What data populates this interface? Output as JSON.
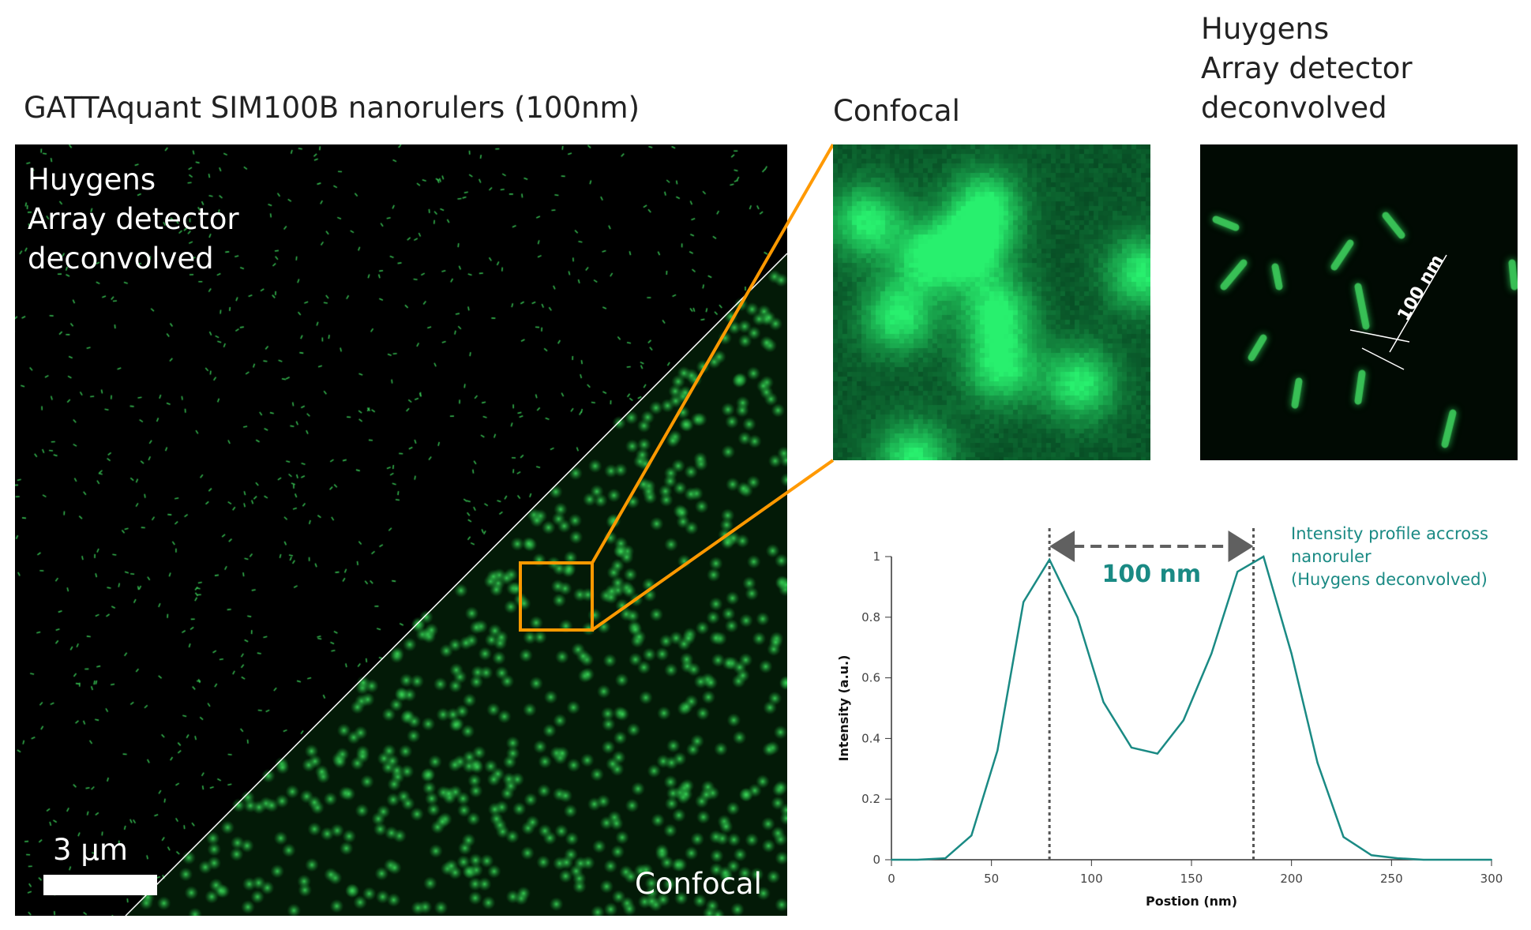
{
  "figure_title": "GATTAquant SIM100B nanorulers (100nm)",
  "main_image": {
    "overlay_top_left": [
      "Huygens",
      "Array detector",
      "deconvolved"
    ],
    "overlay_bottom_right": "Confocal",
    "scale_bar_label": "3 µm"
  },
  "insets": {
    "confocal_title": "Confocal",
    "huygens_title": [
      "Huygens",
      "Array detector",
      "deconvolved"
    ],
    "ruler_label": "100 nm"
  },
  "colors": {
    "accent": "#ff9900",
    "curve": "#1a8a84",
    "spot": "#2ecc55",
    "annotation": "#606060"
  },
  "chart_data": {
    "type": "line",
    "title": "",
    "xlabel": "Postion (nm)",
    "ylabel": "Intensity (a.u.)",
    "xlim": [
      0,
      300
    ],
    "ylim": [
      0,
      1
    ],
    "xticks": [
      "0",
      "50",
      "100",
      "150",
      "200",
      "250",
      "300"
    ],
    "yticks": [
      "0",
      "0.2",
      "0.4",
      "0.6",
      "0.8",
      "1"
    ],
    "grid": false,
    "series": [
      {
        "name": "Intensity profile accross nanoruler (Huygens deconvolved)",
        "x": [
          0,
          13,
          27,
          40,
          53,
          66,
          79,
          93,
          106,
          120,
          133,
          146,
          160,
          173,
          186,
          200,
          213,
          226,
          240,
          253,
          266,
          280,
          300
        ],
        "y": [
          0,
          0,
          0.005,
          0.08,
          0.36,
          0.85,
          0.99,
          0.8,
          0.52,
          0.37,
          0.35,
          0.46,
          0.68,
          0.95,
          1.0,
          0.68,
          0.32,
          0.075,
          0.015,
          0.005,
          0,
          0,
          0
        ]
      }
    ],
    "legend": [
      "Intensity profile accross",
      "nanoruler",
      "(Huygens deconvolved)"
    ],
    "legend_placement": "top-right",
    "annotation": {
      "label": "100 nm",
      "x_from": 79,
      "x_to": 181
    }
  }
}
